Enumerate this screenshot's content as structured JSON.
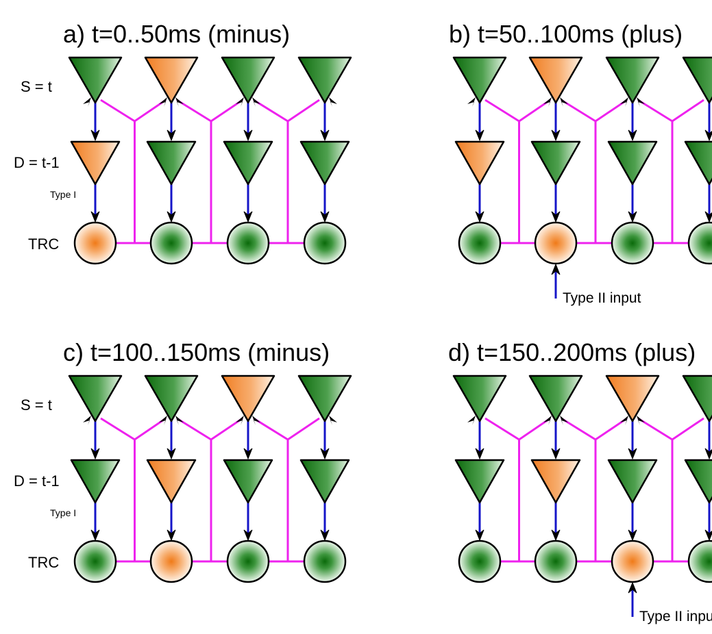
{
  "colors": {
    "active": "#f07d22",
    "inactive": "#237a23",
    "lateral": "#ee22ee",
    "projection": "#1515c8",
    "arrowhead": "#000000"
  },
  "row_labels": {
    "superficial": "S = t",
    "deep": "D = t-1",
    "trc": "TRC",
    "type_one": "Type I"
  },
  "input_label": "Type II input",
  "panels": [
    {
      "title": "a) t=0..50ms (minus)",
      "show_row_labels": true,
      "superficial_active": 1,
      "deep_active": 0,
      "trc_active": 0,
      "type_two_input": null
    },
    {
      "title": "b) t=50..100ms (plus)",
      "show_row_labels": false,
      "superficial_active": 1,
      "deep_active": 0,
      "trc_active": 1,
      "type_two_input": 1
    },
    {
      "title": "c) t=100..150ms (minus)",
      "show_row_labels": true,
      "superficial_active": 2,
      "deep_active": 1,
      "trc_active": 1,
      "type_two_input": null
    },
    {
      "title": "d) t=150..200ms (plus)",
      "show_row_labels": false,
      "superficial_active": 2,
      "deep_active": 1,
      "trc_active": 2,
      "type_two_input": 2
    }
  ]
}
